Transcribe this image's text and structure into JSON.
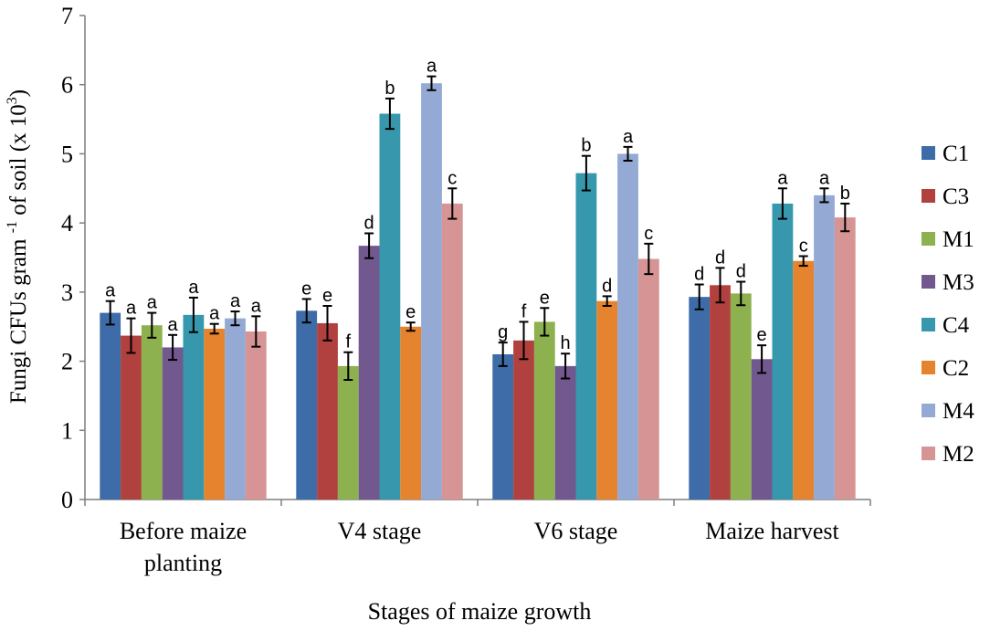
{
  "chart_data": {
    "type": "bar",
    "title": "",
    "xlabel": "Stages of maize growth",
    "ylabel": "Fungi CFUs gram -1 of soil (x 10^3)",
    "ylabel_parts": {
      "main": "Fungi CFUs gram ",
      "sup1": "-1",
      "mid": " of soil (x 10",
      "sup2": "3",
      "end": ")"
    },
    "ylim": [
      0,
      7
    ],
    "yticks": [
      "0",
      "1",
      "2",
      "3",
      "4",
      "5",
      "6",
      "7"
    ],
    "categories": [
      [
        "Before maize",
        "planting"
      ],
      [
        "V4 stage"
      ],
      [
        "V6 stage"
      ],
      [
        "Maize harvest"
      ]
    ],
    "legend_position": "right",
    "series": [
      {
        "name": "C1",
        "color": "#3E6CA8",
        "values": [
          2.7,
          2.73,
          2.1,
          2.93
        ],
        "errors": [
          0.17,
          0.17,
          0.17,
          0.18
        ],
        "letters": [
          "a",
          "e",
          "g",
          "d"
        ]
      },
      {
        "name": "C3",
        "color": "#B0413E",
        "values": [
          2.37,
          2.55,
          2.3,
          3.1
        ],
        "errors": [
          0.25,
          0.25,
          0.27,
          0.25
        ],
        "letters": [
          "a",
          "e",
          "f",
          "d"
        ]
      },
      {
        "name": "M1",
        "color": "#8EB14F",
        "values": [
          2.52,
          1.93,
          2.57,
          2.98
        ],
        "errors": [
          0.18,
          0.2,
          0.2,
          0.17
        ],
        "letters": [
          "a",
          "f",
          "e",
          "d"
        ]
      },
      {
        "name": "M3",
        "color": "#71588F",
        "values": [
          2.2,
          3.67,
          1.93,
          2.03
        ],
        "errors": [
          0.18,
          0.18,
          0.18,
          0.2
        ],
        "letters": [
          "a",
          "d",
          "h",
          "e"
        ]
      },
      {
        "name": "C4",
        "color": "#3697AD",
        "values": [
          2.67,
          5.58,
          4.72,
          4.28
        ],
        "errors": [
          0.25,
          0.22,
          0.25,
          0.22
        ],
        "letters": [
          "a",
          "b",
          "b",
          "a"
        ]
      },
      {
        "name": "C2",
        "color": "#E5832E",
        "values": [
          2.47,
          2.5,
          2.87,
          3.45
        ],
        "errors": [
          0.07,
          0.06,
          0.07,
          0.07
        ],
        "letters": [
          "a",
          "e",
          "d",
          "c"
        ]
      },
      {
        "name": "M4",
        "color": "#94A9D4",
        "values": [
          2.62,
          6.02,
          5.0,
          4.4
        ],
        "errors": [
          0.1,
          0.1,
          0.1,
          0.1
        ],
        "letters": [
          "a",
          "a",
          "a",
          "a"
        ]
      },
      {
        "name": "M2",
        "color": "#D69594",
        "values": [
          2.43,
          4.28,
          3.48,
          4.08
        ],
        "errors": [
          0.22,
          0.22,
          0.22,
          0.2
        ],
        "letters": [
          "a",
          "c",
          "c",
          "b"
        ]
      }
    ]
  }
}
